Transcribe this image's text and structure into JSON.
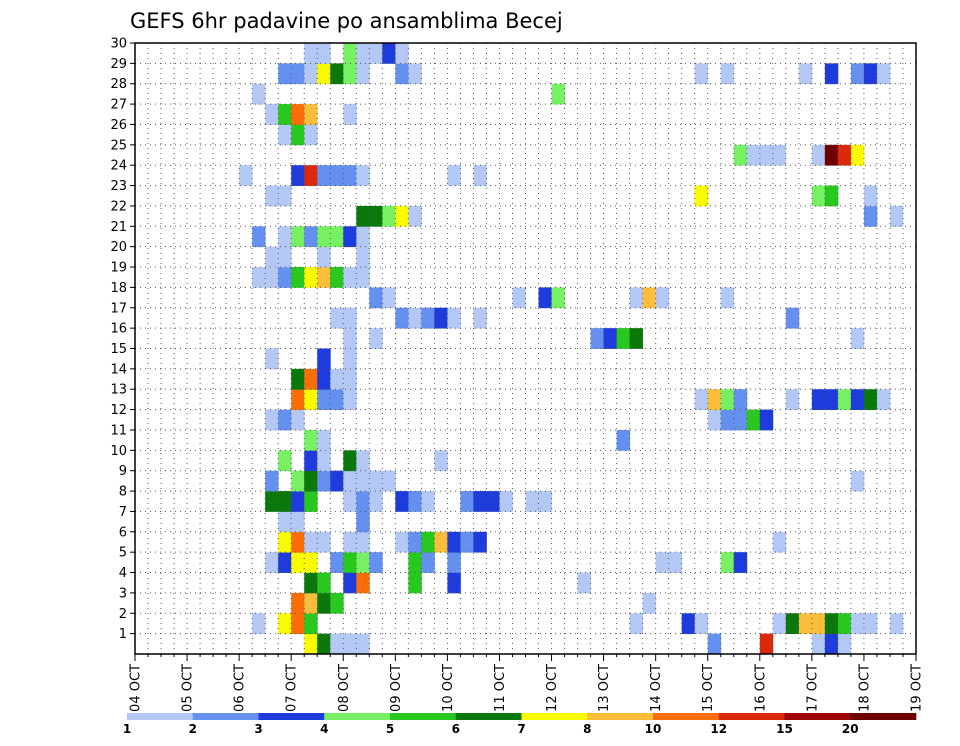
{
  "chart_data": {
    "type": "heatmap",
    "title": "GEFS 6hr padavine po ansamblima Becej",
    "x_tick_labels": [
      "04 OCT",
      "05 OCT",
      "06 OCT",
      "07 OCT",
      "08 OCT",
      "09 OCT",
      "10 OCT",
      "11 OCT",
      "12 OCT",
      "13 OCT",
      "14 OCT",
      "15 OCT",
      "16 OCT",
      "17 OCT",
      "18 OCT",
      "19 OCT"
    ],
    "y_tick_labels": [
      "1",
      "2",
      "3",
      "4",
      "5",
      "6",
      "7",
      "8",
      "9",
      "10",
      "11",
      "12",
      "13",
      "14",
      "15",
      "16",
      "17",
      "18",
      "19",
      "20",
      "21",
      "22",
      "23",
      "24",
      "25",
      "26",
      "27",
      "28",
      "29",
      "30"
    ],
    "x_unit": "6-hour step from 04 OCT",
    "xlim": [
      0,
      60
    ],
    "ylim": [
      0,
      30
    ],
    "grid": true,
    "colorbar": {
      "levels": [
        "1",
        "2",
        "3",
        "4",
        "5",
        "6",
        "7",
        "8",
        "10",
        "12",
        "15",
        "20"
      ],
      "colors": [
        "#b4c8f5",
        "#6490f0",
        "#1e3cdc",
        "#78f064",
        "#28c81e",
        "#0a780a",
        "#fafa00",
        "#fabe3c",
        "#fa6e0a",
        "#dc280a",
        "#a00505",
        "#6e0000"
      ]
    },
    "cells": [
      {
        "row": 0,
        "col": 13,
        "c": 7
      },
      {
        "row": 0,
        "col": 14,
        "c": 6
      },
      {
        "row": 0,
        "col": 15,
        "c": 1
      },
      {
        "row": 0,
        "col": 16,
        "c": 1
      },
      {
        "row": 0,
        "col": 17,
        "c": 1
      },
      {
        "row": 0,
        "col": 44,
        "c": 2
      },
      {
        "row": 0,
        "col": 48,
        "c": 10
      },
      {
        "row": 0,
        "col": 52,
        "c": 1
      },
      {
        "row": 0,
        "col": 53,
        "c": 3
      },
      {
        "row": 0,
        "col": 54,
        "c": 1
      },
      {
        "row": 1,
        "col": 9,
        "c": 1
      },
      {
        "row": 1,
        "col": 11,
        "c": 7
      },
      {
        "row": 1,
        "col": 12,
        "c": 9
      },
      {
        "row": 1,
        "col": 13,
        "c": 5
      },
      {
        "row": 1,
        "col": 38,
        "c": 1
      },
      {
        "row": 1,
        "col": 42,
        "c": 3
      },
      {
        "row": 1,
        "col": 43,
        "c": 1
      },
      {
        "row": 1,
        "col": 49,
        "c": 1
      },
      {
        "row": 1,
        "col": 50,
        "c": 6
      },
      {
        "row": 1,
        "col": 51,
        "c": 8
      },
      {
        "row": 1,
        "col": 52,
        "c": 8
      },
      {
        "row": 1,
        "col": 53,
        "c": 6
      },
      {
        "row": 1,
        "col": 54,
        "c": 5
      },
      {
        "row": 1,
        "col": 55,
        "c": 1
      },
      {
        "row": 1,
        "col": 56,
        "c": 1
      },
      {
        "row": 1,
        "col": 58,
        "c": 1
      },
      {
        "row": 2,
        "col": 12,
        "c": 9
      },
      {
        "row": 2,
        "col": 13,
        "c": 8
      },
      {
        "row": 2,
        "col": 14,
        "c": 6
      },
      {
        "row": 2,
        "col": 15,
        "c": 5
      },
      {
        "row": 2,
        "col": 39,
        "c": 1
      },
      {
        "row": 3,
        "col": 13,
        "c": 6
      },
      {
        "row": 3,
        "col": 14,
        "c": 5
      },
      {
        "row": 3,
        "col": 16,
        "c": 3
      },
      {
        "row": 3,
        "col": 17,
        "c": 9
      },
      {
        "row": 3,
        "col": 21,
        "c": 5
      },
      {
        "row": 3,
        "col": 24,
        "c": 3
      },
      {
        "row": 3,
        "col": 34,
        "c": 1
      },
      {
        "row": 4,
        "col": 10,
        "c": 1
      },
      {
        "row": 4,
        "col": 11,
        "c": 3
      },
      {
        "row": 4,
        "col": 12,
        "c": 7
      },
      {
        "row": 4,
        "col": 13,
        "c": 7
      },
      {
        "row": 4,
        "col": 15,
        "c": 2
      },
      {
        "row": 4,
        "col": 16,
        "c": 5
      },
      {
        "row": 4,
        "col": 17,
        "c": 4
      },
      {
        "row": 4,
        "col": 18,
        "c": 2
      },
      {
        "row": 4,
        "col": 21,
        "c": 5
      },
      {
        "row": 4,
        "col": 22,
        "c": 2
      },
      {
        "row": 4,
        "col": 24,
        "c": 2
      },
      {
        "row": 4,
        "col": 40,
        "c": 1
      },
      {
        "row": 4,
        "col": 41,
        "c": 1
      },
      {
        "row": 4,
        "col": 45,
        "c": 4
      },
      {
        "row": 4,
        "col": 46,
        "c": 3
      },
      {
        "row": 5,
        "col": 11,
        "c": 7
      },
      {
        "row": 5,
        "col": 12,
        "c": 9
      },
      {
        "row": 5,
        "col": 13,
        "c": 1
      },
      {
        "row": 5,
        "col": 14,
        "c": 1
      },
      {
        "row": 5,
        "col": 16,
        "c": 1
      },
      {
        "row": 5,
        "col": 17,
        "c": 1
      },
      {
        "row": 5,
        "col": 20,
        "c": 1
      },
      {
        "row": 5,
        "col": 21,
        "c": 2
      },
      {
        "row": 5,
        "col": 22,
        "c": 5
      },
      {
        "row": 5,
        "col": 23,
        "c": 8
      },
      {
        "row": 5,
        "col": 24,
        "c": 3
      },
      {
        "row": 5,
        "col": 25,
        "c": 2
      },
      {
        "row": 5,
        "col": 26,
        "c": 3
      },
      {
        "row": 5,
        "col": 49,
        "c": 1
      },
      {
        "row": 6,
        "col": 11,
        "c": 1
      },
      {
        "row": 6,
        "col": 12,
        "c": 1
      },
      {
        "row": 6,
        "col": 17,
        "c": 2
      },
      {
        "row": 7,
        "col": 10,
        "c": 6
      },
      {
        "row": 7,
        "col": 11,
        "c": 6
      },
      {
        "row": 7,
        "col": 12,
        "c": 3
      },
      {
        "row": 7,
        "col": 13,
        "c": 5
      },
      {
        "row": 7,
        "col": 16,
        "c": 1
      },
      {
        "row": 7,
        "col": 17,
        "c": 2
      },
      {
        "row": 7,
        "col": 18,
        "c": 1
      },
      {
        "row": 7,
        "col": 20,
        "c": 3
      },
      {
        "row": 7,
        "col": 21,
        "c": 2
      },
      {
        "row": 7,
        "col": 22,
        "c": 1
      },
      {
        "row": 7,
        "col": 25,
        "c": 2
      },
      {
        "row": 7,
        "col": 26,
        "c": 3
      },
      {
        "row": 7,
        "col": 27,
        "c": 3
      },
      {
        "row": 7,
        "col": 28,
        "c": 1
      },
      {
        "row": 7,
        "col": 30,
        "c": 1
      },
      {
        "row": 7,
        "col": 31,
        "c": 1
      },
      {
        "row": 8,
        "col": 10,
        "c": 2
      },
      {
        "row": 8,
        "col": 12,
        "c": 4
      },
      {
        "row": 8,
        "col": 13,
        "c": 6
      },
      {
        "row": 8,
        "col": 14,
        "c": 2
      },
      {
        "row": 8,
        "col": 15,
        "c": 3
      },
      {
        "row": 8,
        "col": 16,
        "c": 1
      },
      {
        "row": 8,
        "col": 17,
        "c": 1
      },
      {
        "row": 8,
        "col": 18,
        "c": 1
      },
      {
        "row": 8,
        "col": 19,
        "c": 1
      },
      {
        "row": 8,
        "col": 55,
        "c": 1
      },
      {
        "row": 9,
        "col": 11,
        "c": 4
      },
      {
        "row": 9,
        "col": 13,
        "c": 3
      },
      {
        "row": 9,
        "col": 14,
        "c": 1
      },
      {
        "row": 9,
        "col": 16,
        "c": 6
      },
      {
        "row": 9,
        "col": 17,
        "c": 1
      },
      {
        "row": 9,
        "col": 23,
        "c": 1
      },
      {
        "row": 10,
        "col": 13,
        "c": 4
      },
      {
        "row": 10,
        "col": 14,
        "c": 1
      },
      {
        "row": 10,
        "col": 37,
        "c": 2
      },
      {
        "row": 11,
        "col": 10,
        "c": 1
      },
      {
        "row": 11,
        "col": 11,
        "c": 2
      },
      {
        "row": 11,
        "col": 12,
        "c": 1
      },
      {
        "row": 11,
        "col": 44,
        "c": 1
      },
      {
        "row": 11,
        "col": 45,
        "c": 2
      },
      {
        "row": 11,
        "col": 46,
        "c": 2
      },
      {
        "row": 11,
        "col": 47,
        "c": 5
      },
      {
        "row": 11,
        "col": 48,
        "c": 3
      },
      {
        "row": 12,
        "col": 12,
        "c": 9
      },
      {
        "row": 12,
        "col": 13,
        "c": 7
      },
      {
        "row": 12,
        "col": 14,
        "c": 2
      },
      {
        "row": 12,
        "col": 15,
        "c": 2
      },
      {
        "row": 12,
        "col": 16,
        "c": 1
      },
      {
        "row": 12,
        "col": 43,
        "c": 1
      },
      {
        "row": 12,
        "col": 44,
        "c": 8
      },
      {
        "row": 12,
        "col": 45,
        "c": 4
      },
      {
        "row": 12,
        "col": 46,
        "c": 2
      },
      {
        "row": 12,
        "col": 50,
        "c": 1
      },
      {
        "row": 12,
        "col": 52,
        "c": 3
      },
      {
        "row": 12,
        "col": 53,
        "c": 3
      },
      {
        "row": 12,
        "col": 54,
        "c": 4
      },
      {
        "row": 12,
        "col": 55,
        "c": 3
      },
      {
        "row": 12,
        "col": 56,
        "c": 6
      },
      {
        "row": 12,
        "col": 57,
        "c": 1
      },
      {
        "row": 13,
        "col": 12,
        "c": 6
      },
      {
        "row": 13,
        "col": 13,
        "c": 9
      },
      {
        "row": 13,
        "col": 14,
        "c": 3
      },
      {
        "row": 13,
        "col": 15,
        "c": 1
      },
      {
        "row": 13,
        "col": 16,
        "c": 1
      },
      {
        "row": 14,
        "col": 10,
        "c": 1
      },
      {
        "row": 14,
        "col": 14,
        "c": 3
      },
      {
        "row": 14,
        "col": 16,
        "c": 1
      },
      {
        "row": 15,
        "col": 16,
        "c": 1
      },
      {
        "row": 15,
        "col": 18,
        "c": 1
      },
      {
        "row": 15,
        "col": 35,
        "c": 2
      },
      {
        "row": 15,
        "col": 36,
        "c": 3
      },
      {
        "row": 15,
        "col": 37,
        "c": 5
      },
      {
        "row": 15,
        "col": 38,
        "c": 6
      },
      {
        "row": 15,
        "col": 55,
        "c": 1
      },
      {
        "row": 16,
        "col": 15,
        "c": 1
      },
      {
        "row": 16,
        "col": 16,
        "c": 1
      },
      {
        "row": 16,
        "col": 20,
        "c": 2
      },
      {
        "row": 16,
        "col": 21,
        "c": 1
      },
      {
        "row": 16,
        "col": 22,
        "c": 2
      },
      {
        "row": 16,
        "col": 23,
        "c": 3
      },
      {
        "row": 16,
        "col": 24,
        "c": 1
      },
      {
        "row": 16,
        "col": 26,
        "c": 1
      },
      {
        "row": 16,
        "col": 50,
        "c": 2
      },
      {
        "row": 17,
        "col": 18,
        "c": 2
      },
      {
        "row": 17,
        "col": 19,
        "c": 1
      },
      {
        "row": 17,
        "col": 29,
        "c": 1
      },
      {
        "row": 17,
        "col": 31,
        "c": 3
      },
      {
        "row": 17,
        "col": 32,
        "c": 4
      },
      {
        "row": 17,
        "col": 38,
        "c": 1
      },
      {
        "row": 17,
        "col": 39,
        "c": 8
      },
      {
        "row": 17,
        "col": 40,
        "c": 1
      },
      {
        "row": 17,
        "col": 45,
        "c": 1
      },
      {
        "row": 18,
        "col": 9,
        "c": 1
      },
      {
        "row": 18,
        "col": 10,
        "c": 1
      },
      {
        "row": 18,
        "col": 11,
        "c": 2
      },
      {
        "row": 18,
        "col": 12,
        "c": 5
      },
      {
        "row": 18,
        "col": 13,
        "c": 7
      },
      {
        "row": 18,
        "col": 14,
        "c": 8
      },
      {
        "row": 18,
        "col": 15,
        "c": 5
      },
      {
        "row": 18,
        "col": 16,
        "c": 1
      },
      {
        "row": 18,
        "col": 17,
        "c": 1
      },
      {
        "row": 19,
        "col": 10,
        "c": 1
      },
      {
        "row": 19,
        "col": 11,
        "c": 1
      },
      {
        "row": 19,
        "col": 14,
        "c": 1
      },
      {
        "row": 19,
        "col": 17,
        "c": 1
      },
      {
        "row": 20,
        "col": 9,
        "c": 2
      },
      {
        "row": 20,
        "col": 11,
        "c": 1
      },
      {
        "row": 20,
        "col": 12,
        "c": 4
      },
      {
        "row": 20,
        "col": 13,
        "c": 2
      },
      {
        "row": 20,
        "col": 14,
        "c": 4
      },
      {
        "row": 20,
        "col": 15,
        "c": 4
      },
      {
        "row": 20,
        "col": 16,
        "c": 3
      },
      {
        "row": 20,
        "col": 17,
        "c": 1
      },
      {
        "row": 21,
        "col": 17,
        "c": 6
      },
      {
        "row": 21,
        "col": 18,
        "c": 6
      },
      {
        "row": 21,
        "col": 19,
        "c": 4
      },
      {
        "row": 21,
        "col": 20,
        "c": 7
      },
      {
        "row": 21,
        "col": 21,
        "c": 1
      },
      {
        "row": 21,
        "col": 56,
        "c": 2
      },
      {
        "row": 21,
        "col": 58,
        "c": 1
      },
      {
        "row": 22,
        "col": 10,
        "c": 1
      },
      {
        "row": 22,
        "col": 11,
        "c": 1
      },
      {
        "row": 22,
        "col": 43,
        "c": 7
      },
      {
        "row": 22,
        "col": 52,
        "c": 4
      },
      {
        "row": 22,
        "col": 53,
        "c": 5
      },
      {
        "row": 22,
        "col": 56,
        "c": 1
      },
      {
        "row": 23,
        "col": 8,
        "c": 1
      },
      {
        "row": 23,
        "col": 12,
        "c": 3
      },
      {
        "row": 23,
        "col": 13,
        "c": 10
      },
      {
        "row": 23,
        "col": 14,
        "c": 2
      },
      {
        "row": 23,
        "col": 15,
        "c": 2
      },
      {
        "row": 23,
        "col": 16,
        "c": 2
      },
      {
        "row": 23,
        "col": 17,
        "c": 1
      },
      {
        "row": 23,
        "col": 24,
        "c": 1
      },
      {
        "row": 23,
        "col": 26,
        "c": 1
      },
      {
        "row": 24,
        "col": 46,
        "c": 4
      },
      {
        "row": 24,
        "col": 47,
        "c": 1
      },
      {
        "row": 24,
        "col": 48,
        "c": 1
      },
      {
        "row": 24,
        "col": 49,
        "c": 1
      },
      {
        "row": 24,
        "col": 52,
        "c": 1
      },
      {
        "row": 24,
        "col": 53,
        "c": 12
      },
      {
        "row": 24,
        "col": 54,
        "c": 10
      },
      {
        "row": 24,
        "col": 55,
        "c": 7
      },
      {
        "row": 25,
        "col": 11,
        "c": 1
      },
      {
        "row": 25,
        "col": 12,
        "c": 5
      },
      {
        "row": 25,
        "col": 13,
        "c": 1
      },
      {
        "row": 26,
        "col": 10,
        "c": 1
      },
      {
        "row": 26,
        "col": 11,
        "c": 5
      },
      {
        "row": 26,
        "col": 12,
        "c": 9
      },
      {
        "row": 26,
        "col": 13,
        "c": 8
      },
      {
        "row": 26,
        "col": 16,
        "c": 1
      },
      {
        "row": 27,
        "col": 9,
        "c": 1
      },
      {
        "row": 27,
        "col": 32,
        "c": 4
      },
      {
        "row": 28,
        "col": 11,
        "c": 2
      },
      {
        "row": 28,
        "col": 12,
        "c": 2
      },
      {
        "row": 28,
        "col": 13,
        "c": 1
      },
      {
        "row": 28,
        "col": 14,
        "c": 7
      },
      {
        "row": 28,
        "col": 15,
        "c": 6
      },
      {
        "row": 28,
        "col": 16,
        "c": 4
      },
      {
        "row": 28,
        "col": 17,
        "c": 1
      },
      {
        "row": 28,
        "col": 20,
        "c": 2
      },
      {
        "row": 28,
        "col": 21,
        "c": 1
      },
      {
        "row": 28,
        "col": 43,
        "c": 1
      },
      {
        "row": 28,
        "col": 45,
        "c": 1
      },
      {
        "row": 28,
        "col": 51,
        "c": 1
      },
      {
        "row": 28,
        "col": 53,
        "c": 3
      },
      {
        "row": 28,
        "col": 55,
        "c": 2
      },
      {
        "row": 28,
        "col": 56,
        "c": 3
      },
      {
        "row": 28,
        "col": 57,
        "c": 1
      },
      {
        "row": 29,
        "col": 13,
        "c": 1
      },
      {
        "row": 29,
        "col": 14,
        "c": 1
      },
      {
        "row": 29,
        "col": 16,
        "c": 4
      },
      {
        "row": 29,
        "col": 17,
        "c": 1
      },
      {
        "row": 29,
        "col": 18,
        "c": 1
      },
      {
        "row": 29,
        "col": 19,
        "c": 3
      },
      {
        "row": 29,
        "col": 20,
        "c": 1
      }
    ]
  }
}
